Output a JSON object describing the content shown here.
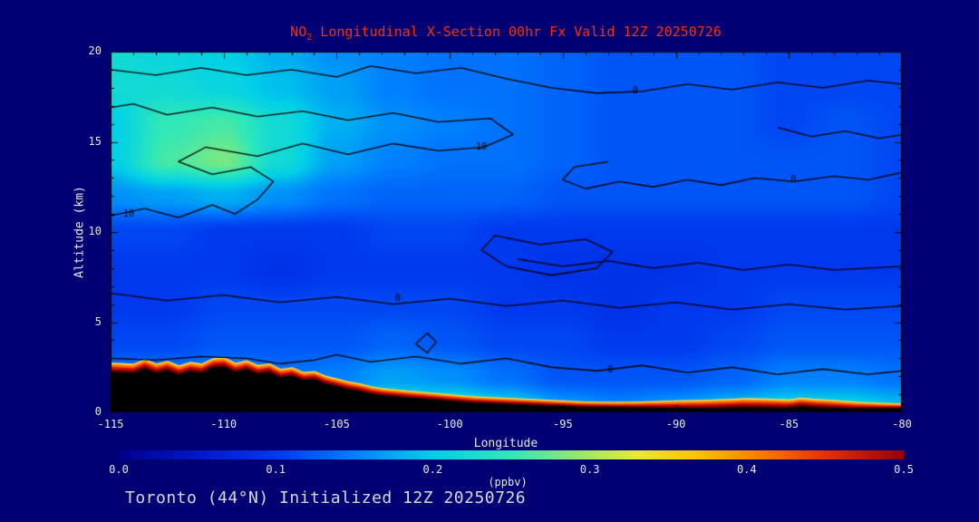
{
  "page": {
    "background_color": "#000074",
    "text_color": "#e8e8e8",
    "caption": "Toronto (44°N) Initialized 12Z 20250726",
    "caption_color": "#d9d9d9"
  },
  "chart_data": {
    "type": "heatmap",
    "title": {
      "prefix": "NO",
      "sub": "2",
      "rest": " Longitudinal X-Section 00hr  Fx Valid 12Z 20250726"
    },
    "title_color": "#ff2d00",
    "xlabel": "Longitude",
    "ylabel": "Altitude (km)",
    "colorbar_label": "(ppbv)",
    "units": "ppbv",
    "x_range": [
      -115,
      -80
    ],
    "y_range": [
      0,
      20
    ],
    "x_ticks": [
      "-115",
      "-110",
      "-105",
      "-100",
      "-95",
      "-90",
      "-85",
      "-80"
    ],
    "y_ticks": [
      "0",
      "5",
      "10",
      "15",
      "20"
    ],
    "colorbar_ticks": [
      "0.0",
      "0.1",
      "0.2",
      "0.3",
      "0.4",
      "0.5"
    ],
    "colorbar_range": [
      0,
      0.5
    ],
    "colormap": [
      {
        "t": 0.0,
        "c": "#000090"
      },
      {
        "t": 0.1,
        "c": "#0018c8"
      },
      {
        "t": 0.2,
        "c": "#0038f0"
      },
      {
        "t": 0.3,
        "c": "#0080ff"
      },
      {
        "t": 0.4,
        "c": "#00d0e8"
      },
      {
        "t": 0.5,
        "c": "#30e8b8"
      },
      {
        "t": 0.58,
        "c": "#90e870"
      },
      {
        "t": 0.66,
        "c": "#e8e838"
      },
      {
        "t": 0.74,
        "c": "#ffc000"
      },
      {
        "t": 0.82,
        "c": "#ff7800"
      },
      {
        "t": 0.9,
        "c": "#e83000"
      },
      {
        "t": 1.0,
        "c": "#980000"
      }
    ],
    "grid": {
      "lon_start": -115,
      "lon_step": 2.5,
      "alt_start": 0,
      "alt_step": 2,
      "values": [
        [
          0.2,
          0.2,
          0.2,
          0.2,
          0.22,
          0.24,
          0.24,
          0.22,
          0.18,
          0.16,
          0.18,
          0.2,
          0.22,
          0.22,
          0.2
        ],
        [
          0.14,
          0.14,
          0.15,
          0.14,
          0.15,
          0.17,
          0.16,
          0.14,
          0.12,
          0.12,
          0.12,
          0.13,
          0.15,
          0.15,
          0.14
        ],
        [
          0.11,
          0.11,
          0.12,
          0.12,
          0.12,
          0.13,
          0.12,
          0.11,
          0.11,
          0.1,
          0.1,
          0.11,
          0.12,
          0.12,
          0.12
        ],
        [
          0.1,
          0.1,
          0.11,
          0.11,
          0.11,
          0.11,
          0.11,
          0.1,
          0.1,
          0.09,
          0.1,
          0.1,
          0.11,
          0.11,
          0.11
        ],
        [
          0.1,
          0.1,
          0.1,
          0.09,
          0.1,
          0.1,
          0.1,
          0.1,
          0.09,
          0.09,
          0.09,
          0.1,
          0.1,
          0.1,
          0.1
        ],
        [
          0.11,
          0.11,
          0.1,
          0.1,
          0.1,
          0.11,
          0.11,
          0.1,
          0.1,
          0.1,
          0.1,
          0.1,
          0.1,
          0.1,
          0.1
        ],
        [
          0.16,
          0.17,
          0.18,
          0.16,
          0.14,
          0.13,
          0.13,
          0.13,
          0.12,
          0.12,
          0.12,
          0.12,
          0.12,
          0.12,
          0.11
        ],
        [
          0.2,
          0.26,
          0.28,
          0.22,
          0.17,
          0.15,
          0.14,
          0.14,
          0.13,
          0.12,
          0.12,
          0.12,
          0.12,
          0.12,
          0.11
        ],
        [
          0.2,
          0.25,
          0.26,
          0.22,
          0.18,
          0.16,
          0.15,
          0.14,
          0.13,
          0.12,
          0.12,
          0.12,
          0.11,
          0.12,
          0.11
        ],
        [
          0.22,
          0.22,
          0.21,
          0.19,
          0.17,
          0.15,
          0.14,
          0.14,
          0.13,
          0.12,
          0.12,
          0.12,
          0.11,
          0.11,
          0.11
        ],
        [
          0.22,
          0.21,
          0.2,
          0.18,
          0.16,
          0.15,
          0.14,
          0.14,
          0.13,
          0.12,
          0.12,
          0.12,
          0.11,
          0.11,
          0.11
        ]
      ]
    },
    "terrain": {
      "lons": [
        -115,
        -114,
        -113.5,
        -113,
        -112.5,
        -112,
        -111.5,
        -111,
        -110.5,
        -110,
        -109.5,
        -109,
        -108.5,
        -108,
        -107.5,
        -107,
        -106.5,
        -106,
        -105.5,
        -105,
        -104.5,
        -104,
        -103.5,
        -103,
        -102,
        -101,
        -100,
        -99,
        -98,
        -97,
        -96,
        -95,
        -94,
        -93,
        -92,
        -91,
        -90,
        -89,
        -88,
        -87,
        -86,
        -85,
        -84.5,
        -84,
        -83,
        -82,
        -81,
        -80
      ],
      "heights": [
        2.25,
        2.2,
        2.45,
        2.2,
        2.35,
        2.1,
        2.3,
        2.2,
        2.5,
        2.55,
        2.25,
        2.4,
        2.15,
        2.25,
        1.95,
        2.05,
        1.8,
        1.85,
        1.6,
        1.45,
        1.3,
        1.2,
        1.05,
        0.95,
        0.85,
        0.75,
        0.65,
        0.55,
        0.5,
        0.45,
        0.4,
        0.35,
        0.3,
        0.3,
        0.28,
        0.26,
        0.25,
        0.24,
        0.26,
        0.3,
        0.28,
        0.25,
        0.35,
        0.3,
        0.25,
        0.22,
        0.22,
        0.22
      ]
    },
    "surface_band": {
      "lons": [
        -115,
        -114,
        -113,
        -112,
        -111,
        -110,
        -109,
        -108,
        -107,
        -106,
        -105,
        -104,
        -103,
        -102,
        -101,
        -100,
        -99,
        -98,
        -97,
        -96,
        -95,
        -94,
        -93,
        -92,
        -91,
        -90,
        -89,
        -88,
        -87,
        -86,
        -85,
        -84,
        -83,
        -82,
        -81,
        -80
      ],
      "intensity": [
        1,
        1,
        1,
        1,
        1,
        1,
        0.95,
        0.9,
        0.85,
        0.8,
        0.78,
        0.72,
        0.68,
        0.62,
        0.6,
        0.58,
        0.55,
        0.52,
        0.5,
        0.48,
        0.45,
        0.42,
        0.38,
        0.45,
        0.6,
        0.75,
        0.85,
        0.9,
        0.95,
        0.95,
        0.9,
        0.88,
        0.8,
        0.6,
        0.45,
        0.35
      ],
      "layers": [
        {
          "c": "#7a0000",
          "f": 0.3
        },
        {
          "c": "#cc1100",
          "f": 0.25
        },
        {
          "c": "#ff5500",
          "f": 0.2
        },
        {
          "c": "#ff9900",
          "f": 0.15
        },
        {
          "c": "#ffd24d",
          "f": 0.1
        }
      ]
    },
    "contours": [
      {
        "label": "10",
        "closed": false,
        "points": [
          [
            -115,
            10.9
          ],
          [
            -113.5,
            11.3
          ],
          [
            -112,
            10.8
          ],
          [
            -110.5,
            11.5
          ],
          [
            -109.5,
            11.0
          ],
          [
            -108.5,
            11.8
          ],
          [
            -107.8,
            12.8
          ],
          [
            -108.8,
            13.6
          ],
          [
            -110.5,
            13.2
          ],
          [
            -112,
            13.9
          ],
          [
            -110.8,
            14.7
          ],
          [
            -108.5,
            14.2
          ],
          [
            -106.5,
            14.9
          ],
          [
            -104.5,
            14.3
          ],
          [
            -102.5,
            14.9
          ],
          [
            -100.5,
            14.5
          ],
          [
            -98.5,
            14.7
          ],
          [
            -97.2,
            15.4
          ],
          [
            -98.2,
            16.3
          ],
          [
            -100.5,
            16.1
          ],
          [
            -102.5,
            16.6
          ],
          [
            -104.5,
            16.2
          ],
          [
            -106.5,
            16.7
          ],
          [
            -108.5,
            16.4
          ],
          [
            -110.5,
            16.9
          ],
          [
            -112.5,
            16.5
          ],
          [
            -114,
            17.1
          ],
          [
            -115,
            16.9
          ]
        ],
        "label_points": [
          [
            -114.2,
            11.0
          ],
          [
            -98.6,
            14.7
          ]
        ]
      },
      {
        "label": "0",
        "closed": false,
        "points": [
          [
            -115,
            19.0
          ],
          [
            -113,
            18.7
          ],
          [
            -111,
            19.1
          ],
          [
            -109,
            18.7
          ],
          [
            -107,
            19.0
          ],
          [
            -105,
            18.6
          ],
          [
            -103.5,
            19.2
          ],
          [
            -101.5,
            18.8
          ],
          [
            -99.5,
            19.1
          ],
          [
            -97.5,
            18.5
          ],
          [
            -95.5,
            18.0
          ],
          [
            -93.5,
            17.7
          ],
          [
            -91.5,
            17.8
          ],
          [
            -89.5,
            18.2
          ],
          [
            -87.5,
            17.9
          ],
          [
            -85.5,
            18.3
          ],
          [
            -83.5,
            18.0
          ],
          [
            -81.5,
            18.4
          ],
          [
            -80,
            18.2
          ]
        ],
        "label_points": [
          [
            -91.8,
            17.8
          ]
        ]
      },
      {
        "label": "0",
        "closed": false,
        "points": [
          [
            -80,
            13.3
          ],
          [
            -81.5,
            12.9
          ],
          [
            -83,
            13.1
          ],
          [
            -84.8,
            12.8
          ],
          [
            -86.5,
            13.0
          ],
          [
            -88,
            12.6
          ],
          [
            -89.5,
            12.9
          ],
          [
            -91,
            12.5
          ],
          [
            -92.5,
            12.8
          ],
          [
            -94,
            12.4
          ],
          [
            -95,
            12.9
          ],
          [
            -94.5,
            13.6
          ],
          [
            -93,
            13.9
          ]
        ],
        "label_points": [
          [
            -84.8,
            12.9
          ]
        ]
      },
      {
        "label": "0",
        "closed": false,
        "points": [
          [
            -115,
            6.6
          ],
          [
            -112.5,
            6.2
          ],
          [
            -110,
            6.5
          ],
          [
            -107.5,
            6.1
          ],
          [
            -105,
            6.4
          ],
          [
            -102.5,
            6.0
          ],
          [
            -100,
            6.3
          ],
          [
            -97.5,
            5.9
          ],
          [
            -95,
            6.2
          ],
          [
            -92.5,
            5.8
          ],
          [
            -90,
            6.1
          ],
          [
            -87.5,
            5.7
          ],
          [
            -85,
            6.0
          ],
          [
            -82.5,
            5.7
          ],
          [
            -80,
            5.9
          ]
        ],
        "label_points": [
          [
            -102.3,
            6.3
          ]
        ]
      },
      {
        "label": "0",
        "closed": false,
        "points": [
          [
            -115,
            3.0
          ],
          [
            -113,
            2.9
          ],
          [
            -111,
            3.1
          ],
          [
            -109,
            3.0
          ],
          [
            -107.5,
            2.7
          ],
          [
            -106,
            2.9
          ],
          [
            -105,
            3.2
          ],
          [
            -103.5,
            2.8
          ],
          [
            -101.5,
            3.1
          ],
          [
            -99.5,
            2.7
          ],
          [
            -97.5,
            3.0
          ],
          [
            -95.5,
            2.5
          ],
          [
            -93.5,
            2.3
          ],
          [
            -91.5,
            2.6
          ],
          [
            -89.5,
            2.2
          ],
          [
            -87.5,
            2.5
          ],
          [
            -85.5,
            2.1
          ],
          [
            -83.5,
            2.4
          ],
          [
            -81.5,
            2.1
          ],
          [
            -80,
            2.3
          ]
        ],
        "label_points": [
          [
            -92.9,
            2.35
          ]
        ]
      },
      {
        "label": "0",
        "closed": true,
        "points": [
          [
            -101,
            4.4
          ],
          [
            -100.6,
            3.9
          ],
          [
            -101,
            3.3
          ],
          [
            -101.5,
            3.8
          ]
        ],
        "label_points": []
      },
      {
        "label": "0",
        "closed": false,
        "points": [
          [
            -97,
            8.5
          ],
          [
            -95,
            8.1
          ],
          [
            -93,
            8.4
          ],
          [
            -91,
            8.0
          ],
          [
            -89,
            8.3
          ],
          [
            -87,
            7.9
          ],
          [
            -85,
            8.2
          ],
          [
            -83,
            7.9
          ],
          [
            -80,
            8.1
          ]
        ],
        "label_points": []
      },
      {
        "label": "0",
        "closed": true,
        "points": [
          [
            -98,
            9.8
          ],
          [
            -96,
            9.3
          ],
          [
            -94,
            9.6
          ],
          [
            -92.8,
            8.9
          ],
          [
            -93.5,
            8.0
          ],
          [
            -95.5,
            7.6
          ],
          [
            -97.5,
            8.1
          ],
          [
            -98.6,
            9.0
          ]
        ],
        "label_points": []
      },
      {
        "label": "0",
        "closed": false,
        "points": [
          [
            -85.5,
            15.8
          ],
          [
            -84,
            15.3
          ],
          [
            -82.5,
            15.6
          ],
          [
            -81,
            15.2
          ],
          [
            -80,
            15.4
          ]
        ],
        "label_points": []
      }
    ]
  }
}
